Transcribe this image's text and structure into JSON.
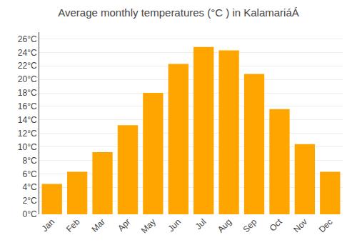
{
  "chart_data": {
    "type": "bar",
    "title": "Average monthly temperatures (°C ) in KalamariáÁ",
    "categories": [
      "Jan",
      "Feb",
      "Mar",
      "Apr",
      "May",
      "Jun",
      "Jul",
      "Aug",
      "Sep",
      "Oct",
      "Nov",
      "Dec"
    ],
    "values": [
      4.5,
      6.3,
      9.2,
      13.2,
      18.0,
      22.3,
      24.8,
      24.3,
      20.8,
      15.6,
      10.4,
      6.3
    ],
    "color": "#FFA500",
    "ylim": [
      0,
      27
    ],
    "yticks": [
      {
        "value": 0,
        "label": "0°C"
      },
      {
        "value": 2,
        "label": "2°C"
      },
      {
        "value": 4,
        "label": "4°C"
      },
      {
        "value": 6,
        "label": "6°C"
      },
      {
        "value": 8,
        "label": "8°C"
      },
      {
        "value": 10,
        "label": "10°C"
      },
      {
        "value": 12,
        "label": "12°C"
      },
      {
        "value": 14,
        "label": "14°C"
      },
      {
        "value": 16,
        "label": "16°C"
      },
      {
        "value": 18,
        "label": "18°C"
      },
      {
        "value": 20,
        "label": "20°C"
      },
      {
        "value": 22,
        "label": "22°C"
      },
      {
        "value": 24,
        "label": "24°C"
      },
      {
        "value": 26,
        "label": "26°C"
      }
    ],
    "grid": true
  }
}
